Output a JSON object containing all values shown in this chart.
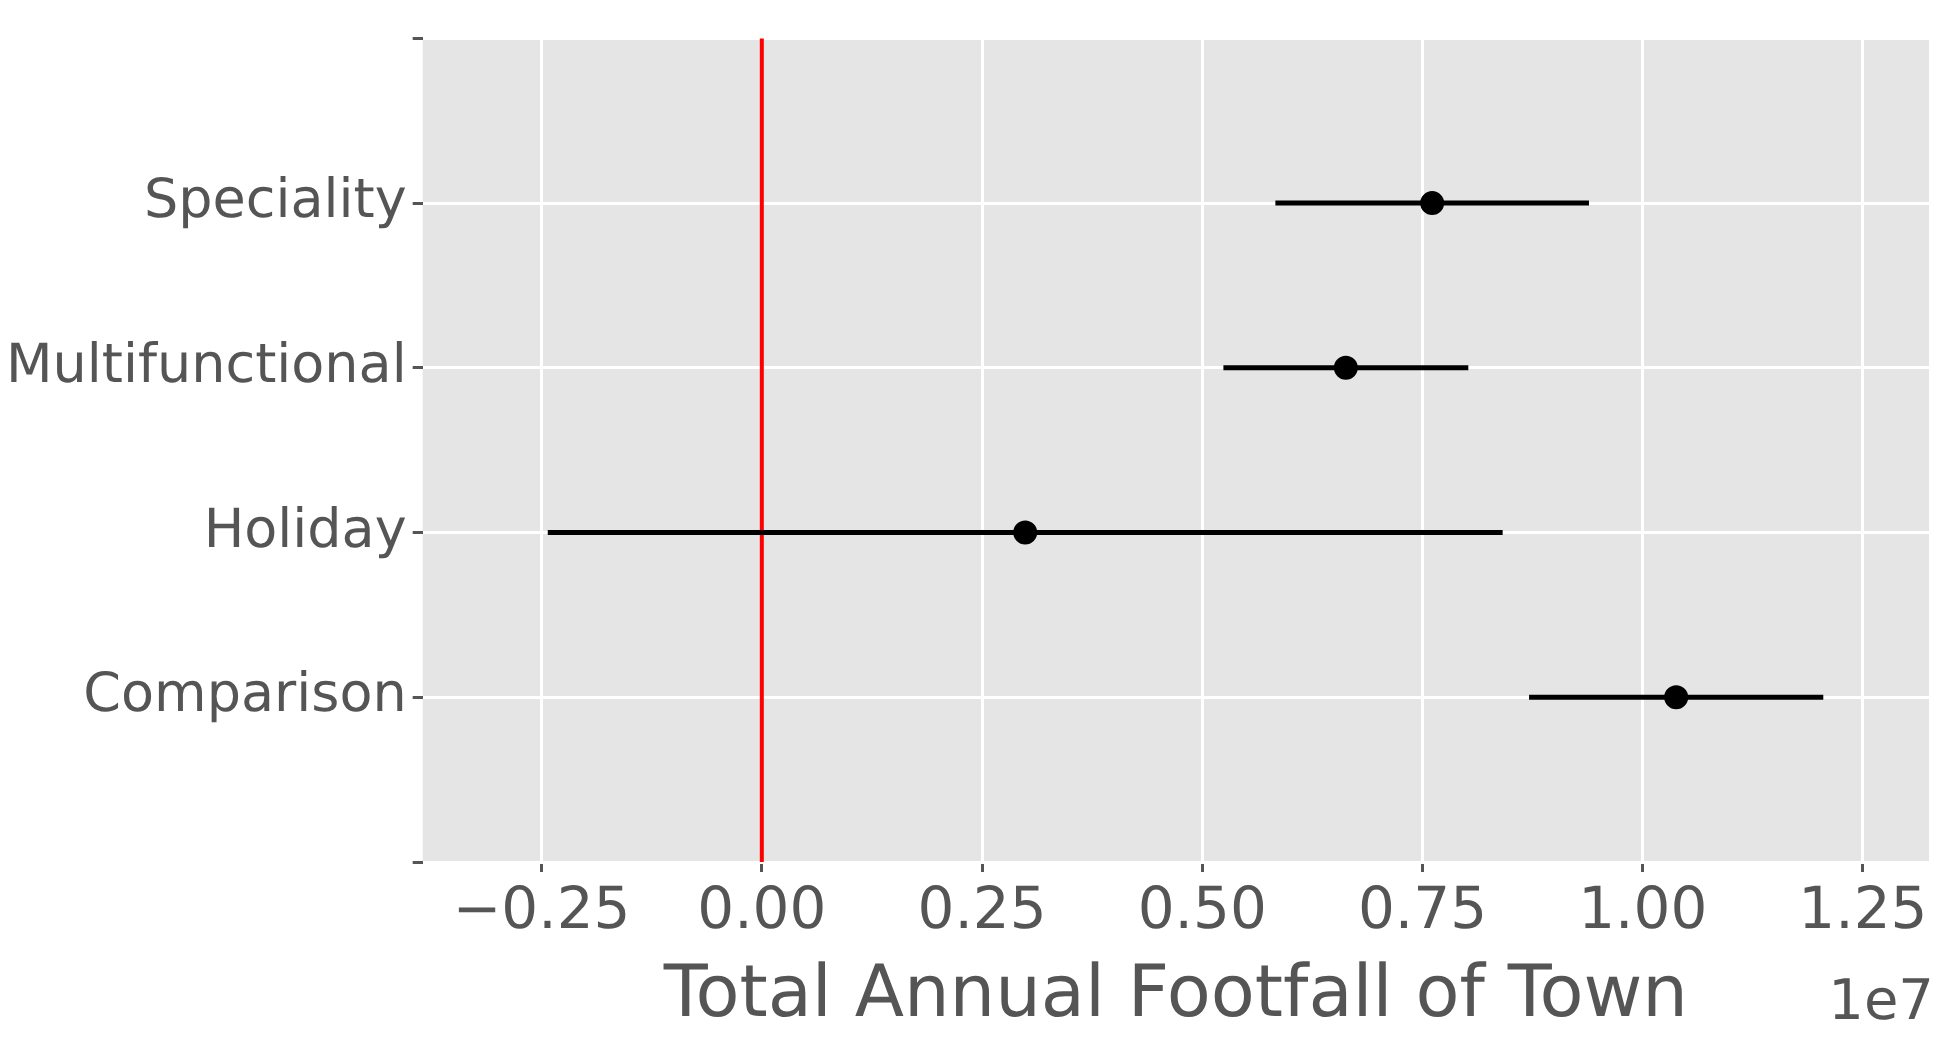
{
  "chart_data": {
    "type": "scatter",
    "xlabel": "Total Annual Footfall of Town",
    "annotations": [
      "1e7"
    ],
    "categories": [
      null,
      "Speciality",
      "Multifunctional",
      "Holiday",
      "Comparison",
      null
    ],
    "values": [
      null,
      0.761,
      0.663,
      0.299,
      1.038,
      null
    ],
    "errors": [
      null,
      0.178,
      0.139,
      0.542,
      0.167,
      null
    ],
    "color": "#000000",
    "marker": "circle",
    "orientation": "horizontal",
    "xlim": [
      -0.385,
      1.325
    ],
    "xticks": [
      {
        "value": -0.25,
        "label": "−0.25"
      },
      {
        "value": 0,
        "label": "0.00"
      },
      0.25,
      {
        "value": 0.5,
        "label": "0.50"
      },
      0.75,
      {
        "value": 1,
        "label": "1.00"
      },
      1.25
    ],
    "ref_lines": [
      {
        "axis": "x",
        "value": 0,
        "color": "#ff0000"
      }
    ],
    "grid": true,
    "legend": false
  }
}
